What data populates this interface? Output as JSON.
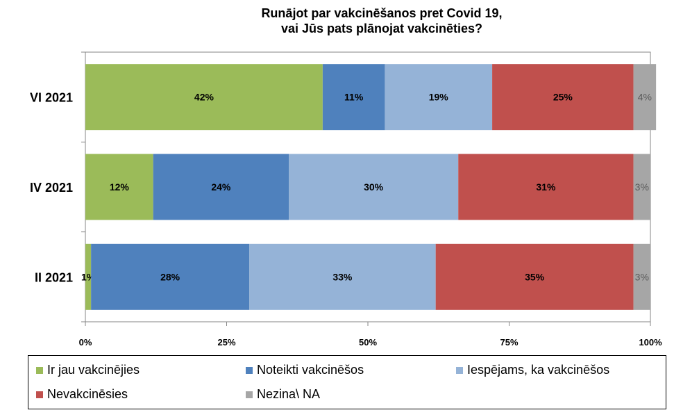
{
  "chart_data": {
    "type": "bar",
    "orientation": "horizontal",
    "stacked": true,
    "title_line1": "Runājot par vakcinēšanos pret Covid 19,",
    "title_line2": "vai Jūs pats plānojat vakcinēties?",
    "categories": [
      "VI 2021",
      "IV 2021",
      "II 2021"
    ],
    "series": [
      {
        "name": "Ir jau vakcinējies",
        "color": "#9bbb59",
        "values": [
          42,
          12,
          1
        ],
        "labels": [
          "42%",
          "12%",
          "1%"
        ]
      },
      {
        "name": "Noteikti vakcinēšos",
        "color": "#4f81bd",
        "values": [
          11,
          24,
          28
        ],
        "labels": [
          "11%",
          "24%",
          "28%"
        ]
      },
      {
        "name": "Iespējams, ka vakcinēšos",
        "color": "#95b3d7",
        "values": [
          19,
          30,
          33
        ],
        "labels": [
          "19%",
          "30%",
          "33%"
        ]
      },
      {
        "name": "Nevakcinēsies",
        "color": "#c0504d",
        "values": [
          25,
          31,
          35
        ],
        "labels": [
          "25%",
          "31%",
          "35%"
        ]
      },
      {
        "name": "Nezina\\ NA",
        "color": "#a6a6a6",
        "values": [
          4,
          3,
          3
        ],
        "labels": [
          "4%",
          "3%",
          "3%"
        ]
      }
    ],
    "x_ticks": [
      "0%",
      "25%",
      "50%",
      "75%",
      "100%"
    ],
    "xlim": [
      0,
      100
    ],
    "grid": false,
    "legend_position": "bottom"
  }
}
